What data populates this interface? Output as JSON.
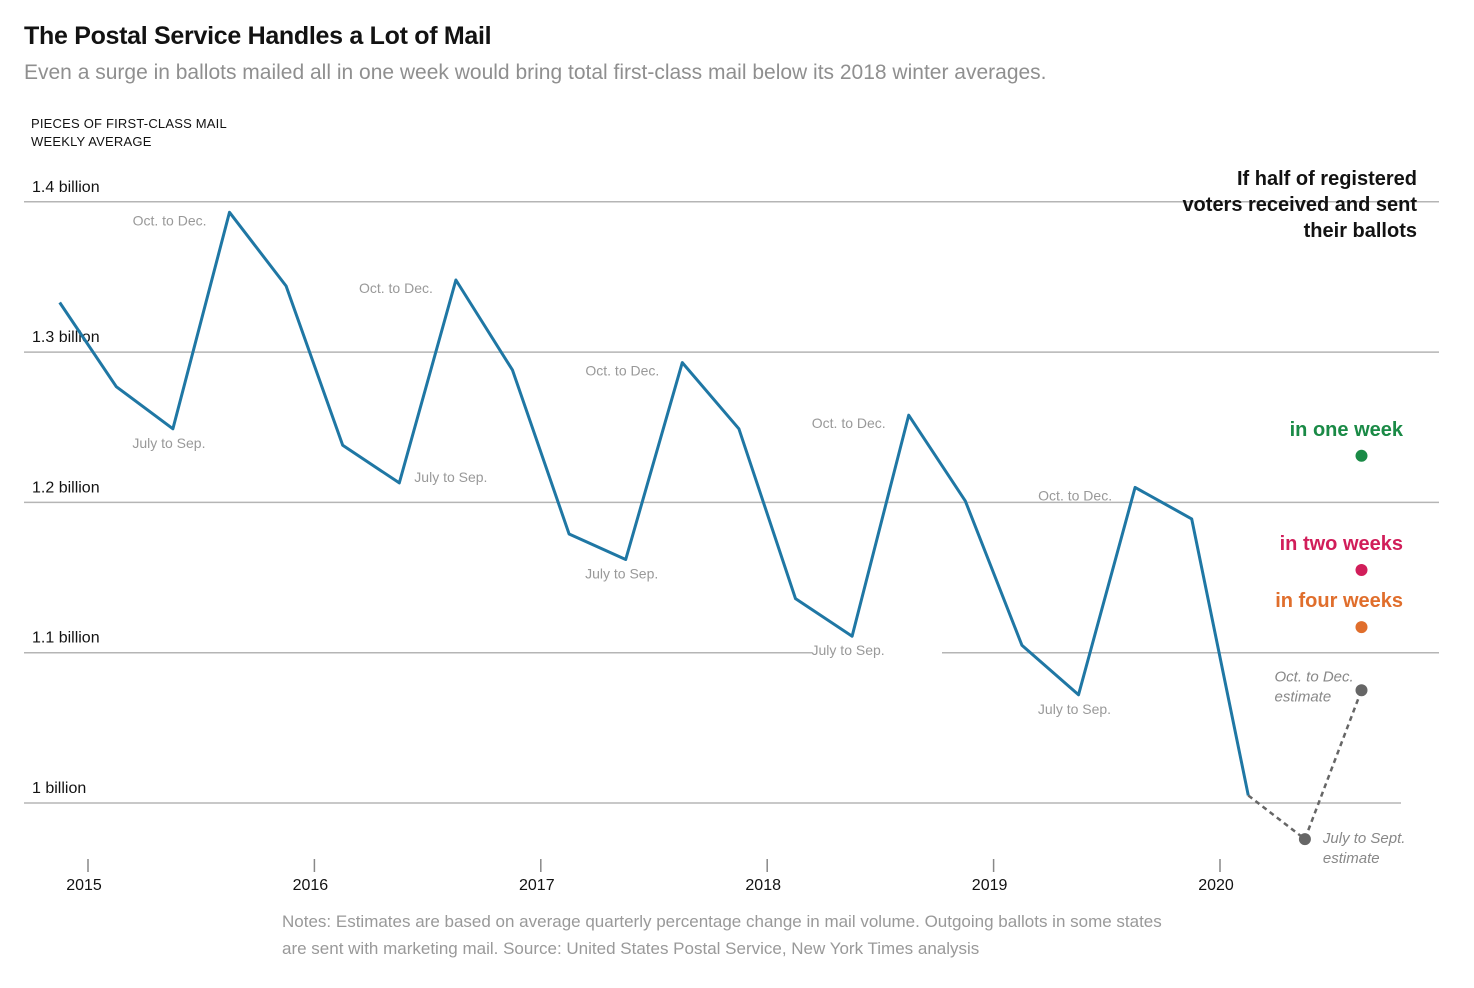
{
  "title": "The Postal Service Handles a Lot of Mail",
  "subtitle": "Even a surge in ballots mailed all in one week would bring total first-class mail below its 2018 winter averages.",
  "notes": "Notes: Estimates are based on average quarterly percentage change in mail volume. Outgoing ballots in some states are sent with marketing mail. Source: United States Postal Service, New York Times analysis",
  "colors": {
    "line": "#1f77a4",
    "estimate": "#666666",
    "grid": "#b5b5b5",
    "one_week": "#1a8a46",
    "two_weeks": "#d11e5a",
    "four_weeks": "#e06e2c",
    "annotation": "#999999"
  },
  "chart_data": {
    "type": "line",
    "ylabel": [
      "PIECES OF FIRST-CLASS MAIL",
      "WEEKLY AVERAGE"
    ],
    "ylim": [
      0.98,
      1.41
    ],
    "xlim": [
      2015,
      2020.95
    ],
    "yticks": [
      {
        "value": 1.0,
        "label": "1 billion"
      },
      {
        "value": 1.1,
        "label": "1.1 billion"
      },
      {
        "value": 1.2,
        "label": "1.2 billion"
      },
      {
        "value": 1.3,
        "label": "1.3 billion"
      },
      {
        "value": 1.4,
        "label": "1.4 billion"
      }
    ],
    "xticks": [
      {
        "value": 2015,
        "label": "2015"
      },
      {
        "value": 2016,
        "label": "2016"
      },
      {
        "value": 2017,
        "label": "2017"
      },
      {
        "value": 2018,
        "label": "2018"
      },
      {
        "value": 2019,
        "label": "2019"
      },
      {
        "value": 2020,
        "label": "2020"
      }
    ],
    "series": [
      {
        "points": [
          {
            "x": 2014.875,
            "y": 1.333
          },
          {
            "x": 2015.125,
            "y": 1.277
          },
          {
            "x": 2015.375,
            "y": 1.249
          },
          {
            "x": 2015.625,
            "y": 1.393
          },
          {
            "x": 2015.875,
            "y": 1.344
          },
          {
            "x": 2016.125,
            "y": 1.238
          },
          {
            "x": 2016.375,
            "y": 1.213
          },
          {
            "x": 2016.625,
            "y": 1.348
          },
          {
            "x": 2016.875,
            "y": 1.288
          },
          {
            "x": 2017.125,
            "y": 1.179
          },
          {
            "x": 2017.375,
            "y": 1.162
          },
          {
            "x": 2017.625,
            "y": 1.293
          },
          {
            "x": 2017.875,
            "y": 1.249
          },
          {
            "x": 2018.125,
            "y": 1.136
          },
          {
            "x": 2018.375,
            "y": 1.111
          },
          {
            "x": 2018.625,
            "y": 1.258
          },
          {
            "x": 2018.875,
            "y": 1.201
          },
          {
            "x": 2019.125,
            "y": 1.105
          },
          {
            "x": 2019.375,
            "y": 1.072
          },
          {
            "x": 2019.625,
            "y": 1.21
          },
          {
            "x": 2019.875,
            "y": 1.189
          },
          {
            "x": 2020.125,
            "y": 1.005
          }
        ]
      }
    ],
    "estimate": [
      {
        "x": 2020.125,
        "y": 1.005
      },
      {
        "x": 2020.375,
        "y": 0.976
      },
      {
        "x": 2020.625,
        "y": 1.075
      }
    ],
    "estimate_labels": [
      {
        "lines": [
          "July to Sept.",
          "estimate"
        ],
        "x": 2020.375,
        "y": 0.976
      },
      {
        "lines": [
          "Oct. to Dec.",
          "estimate"
        ],
        "x": 2020.625,
        "y": 1.075
      }
    ],
    "annotations": [
      {
        "text": "Oct. to Dec.",
        "x": 2015.625,
        "y": 1.393,
        "pos": "left"
      },
      {
        "text": "Oct. to Dec.",
        "x": 2016.625,
        "y": 1.348,
        "pos": "left"
      },
      {
        "text": "Oct. to Dec.",
        "x": 2017.625,
        "y": 1.293,
        "pos": "left"
      },
      {
        "text": "Oct. to Dec.",
        "x": 2018.625,
        "y": 1.258,
        "pos": "left"
      },
      {
        "text": "Oct. to Dec.",
        "x": 2019.625,
        "y": 1.21,
        "pos": "left"
      },
      {
        "text": "July to Sep.",
        "x": 2015.375,
        "y": 1.249,
        "pos": "below"
      },
      {
        "text": "July to Sep.",
        "x": 2016.375,
        "y": 1.213,
        "pos": "right"
      },
      {
        "text": "July to Sep.",
        "x": 2017.375,
        "y": 1.162,
        "pos": "below"
      },
      {
        "text": "July to Sep.",
        "x": 2018.375,
        "y": 1.111,
        "pos": "below"
      },
      {
        "text": "July to Sep.",
        "x": 2019.375,
        "y": 1.072,
        "pos": "below"
      }
    ],
    "scenario_header": [
      "If half of registered",
      "voters received and sent",
      "their ballots"
    ],
    "scenarios": [
      {
        "label": "in one week",
        "x": 2020.625,
        "y": 1.231,
        "color": "#1a8a46"
      },
      {
        "label": "in two weeks",
        "x": 2020.625,
        "y": 1.155,
        "color": "#d11e5a"
      },
      {
        "label": "in four weeks",
        "x": 2020.625,
        "y": 1.117,
        "color": "#e06e2c"
      }
    ]
  }
}
